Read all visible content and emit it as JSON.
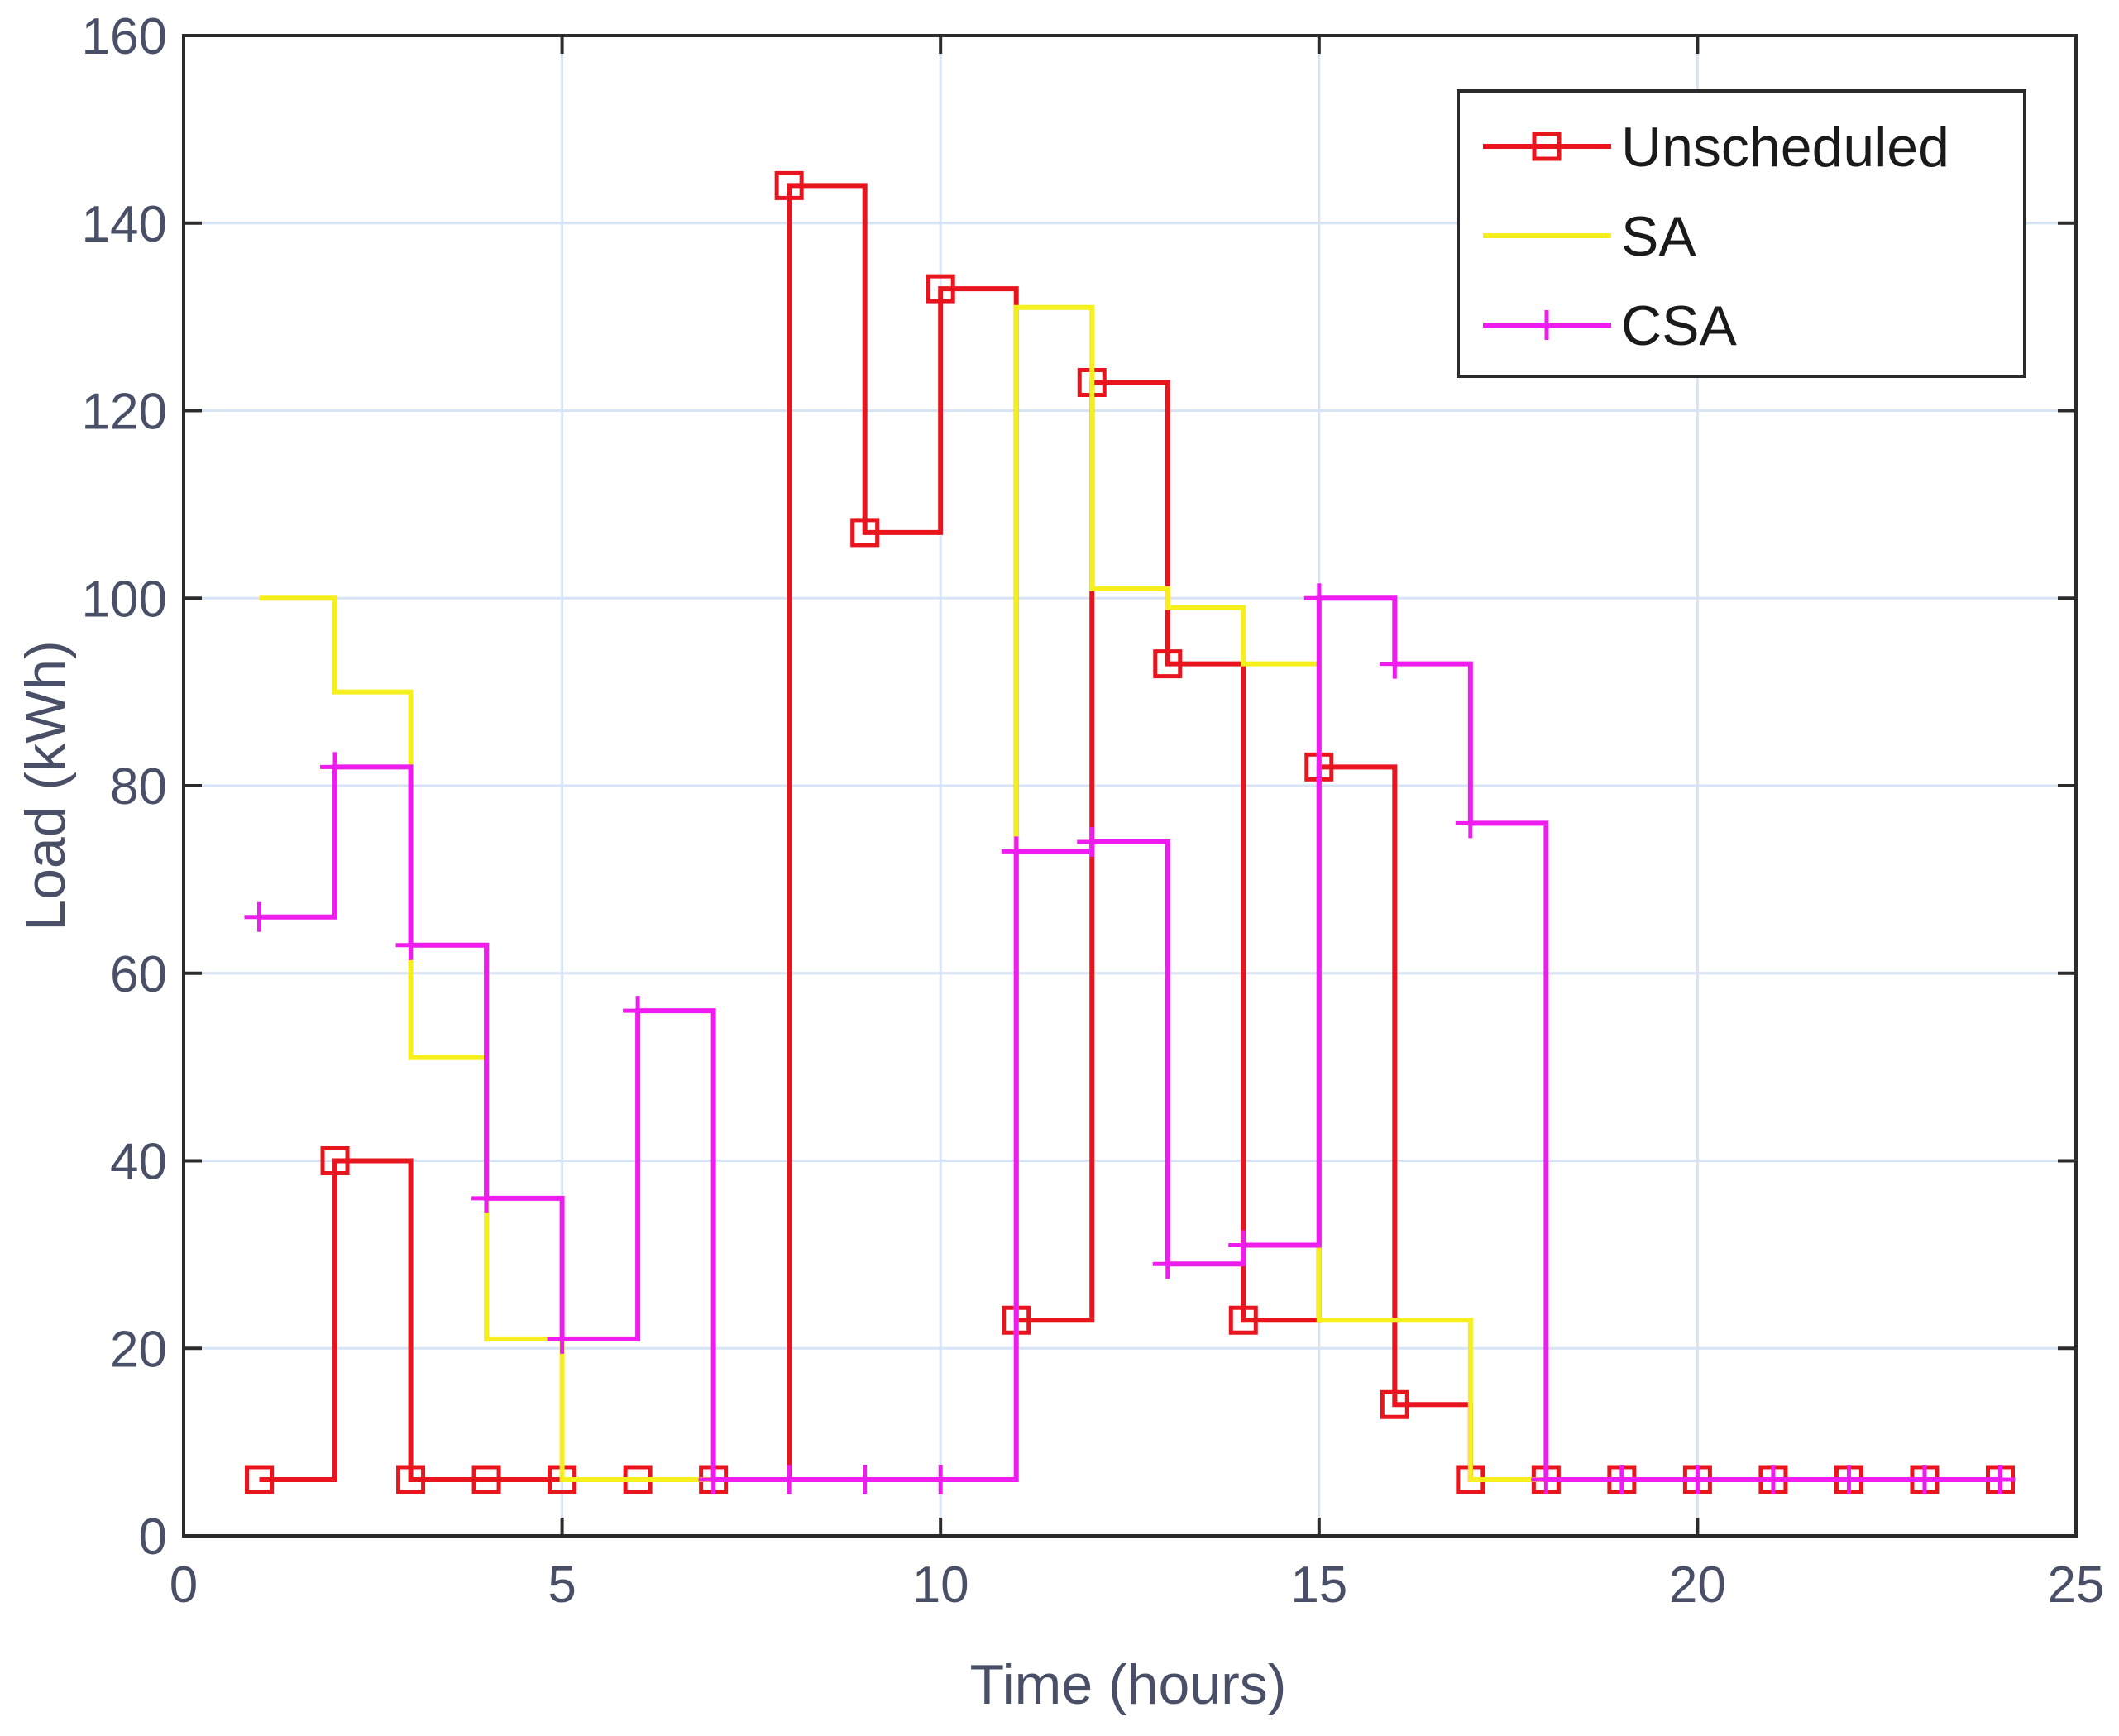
{
  "chart_data": {
    "type": "line",
    "subtype": "step",
    "title": "",
    "xlabel": "Time (hours)",
    "ylabel": "Load (kWh)",
    "xlim": [
      0,
      25
    ],
    "ylim": [
      0,
      160
    ],
    "xticks": [
      0,
      5,
      10,
      15,
      20,
      25
    ],
    "yticks": [
      0,
      20,
      40,
      60,
      80,
      100,
      120,
      140,
      160
    ],
    "grid": true,
    "legend_position": "top-right",
    "x": [
      1,
      2,
      3,
      4,
      5,
      6,
      7,
      8,
      9,
      10,
      11,
      12,
      13,
      14,
      15,
      16,
      17,
      18,
      19,
      20,
      21,
      22,
      23,
      24
    ],
    "series": [
      {
        "name": "Unscheduled",
        "color": "#e8141e",
        "marker": "square",
        "values": [
          6,
          40,
          6,
          6,
          6,
          6,
          6,
          144,
          107,
          133,
          23,
          123,
          93,
          23,
          82,
          14,
          6,
          6,
          6,
          6,
          6,
          6,
          6,
          6
        ]
      },
      {
        "name": "SA",
        "color": "#f5ef1e",
        "marker": "none",
        "values": [
          100,
          90,
          51,
          21,
          6,
          6,
          6,
          6,
          6,
          6,
          131,
          101,
          99,
          93,
          23,
          23,
          6,
          6,
          6,
          6,
          6,
          6,
          6,
          6
        ]
      },
      {
        "name": "CSA",
        "color": "#ee1cee",
        "marker": "plus",
        "values": [
          66,
          82,
          63,
          36,
          21,
          56,
          6,
          6,
          6,
          6,
          73,
          74,
          29,
          31,
          100,
          93,
          76,
          6,
          6,
          6,
          6,
          6,
          6,
          6
        ]
      }
    ]
  }
}
